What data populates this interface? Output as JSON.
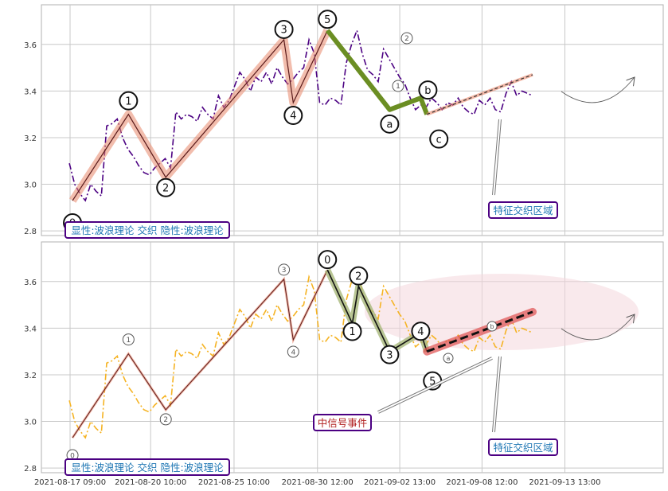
{
  "chart_data": {
    "type": "line",
    "x_tick_labels": [
      "2021-08-17 09:00",
      "2021-08-20 10:00",
      "2021-08-25 10:00",
      "2021-08-30 12:00",
      "2021-09-02 13:00",
      "2021-09-08 12:00",
      "2021-09-13 13:00"
    ],
    "ylim": [
      2.78,
      3.77
    ],
    "y_ticks": [
      2.8,
      3.0,
      3.2,
      3.4,
      3.6
    ],
    "y_tick_labels": [
      "2.8",
      "3.0",
      "3.2",
      "3.4",
      "3.6"
    ],
    "grid": true,
    "price_series": [
      3.09,
      3.0,
      2.96,
      2.93,
      3.0,
      2.97,
      2.95,
      3.25,
      3.26,
      3.28,
      3.2,
      3.15,
      3.12,
      3.08,
      3.05,
      3.04,
      3.07,
      3.09,
      3.11,
      3.07,
      3.31,
      3.28,
      3.3,
      3.29,
      3.27,
      3.33,
      3.3,
      3.28,
      3.38,
      3.33,
      3.36,
      3.42,
      3.48,
      3.45,
      3.4,
      3.46,
      3.44,
      3.48,
      3.43,
      3.5,
      3.46,
      3.43,
      3.45,
      3.48,
      3.5,
      3.62,
      3.56,
      3.35,
      3.34,
      3.37,
      3.36,
      3.34,
      3.52,
      3.6,
      3.66,
      3.56,
      3.49,
      3.47,
      3.44,
      3.58,
      3.54,
      3.5,
      3.46,
      3.43,
      3.37,
      3.32,
      3.34,
      3.33,
      3.37,
      3.35,
      3.32,
      3.35,
      3.34,
      3.37,
      3.33,
      3.31,
      3.3,
      3.36,
      3.34,
      3.37,
      3.32,
      3.31,
      3.39,
      3.44,
      3.38,
      3.4,
      3.39,
      3.38
    ],
    "panels": [
      {
        "name": "top",
        "price_color": "#4b0082",
        "main_wave": {
          "points": [
            [
              0.05,
              2.93
            ],
            [
              0.14,
              3.3
            ],
            [
              0.2,
              3.03
            ],
            [
              0.39,
              3.62
            ],
            [
              0.405,
              3.35
            ],
            [
              0.46,
              3.66
            ]
          ],
          "labels": [
            "0",
            "1",
            "2",
            "3",
            "4",
            "5"
          ]
        },
        "corrective_wave": {
          "points": [
            [
              0.46,
              3.66
            ],
            [
              0.56,
              3.32
            ],
            [
              0.61,
              3.37
            ],
            [
              0.62,
              3.3
            ]
          ],
          "labels": [
            "a",
            "b",
            "c"
          ]
        },
        "forecast": {
          "from": [
            0.62,
            3.3
          ],
          "to": [
            0.79,
            3.47
          ]
        },
        "subwave_labels": [
          "2",
          "1"
        ],
        "annotation_feature": "特征交织区域",
        "legend_text": "显性:波浪理论 交织 隐性:波浪理论"
      },
      {
        "name": "bottom",
        "price_color": "#f5b323",
        "main_wave": {
          "points": [
            [
              0.05,
              2.93
            ],
            [
              0.14,
              3.29
            ],
            [
              0.2,
              3.05
            ],
            [
              0.39,
              3.61
            ],
            [
              0.405,
              3.35
            ],
            [
              0.46,
              3.65
            ]
          ],
          "labels": [
            "0",
            "1",
            "2",
            "3",
            "4",
            "5"
          ]
        },
        "secondary_wave": {
          "points": [
            [
              0.46,
              3.65
            ],
            [
              0.5,
              3.42
            ],
            [
              0.51,
              3.58
            ],
            [
              0.56,
              3.3
            ],
            [
              0.61,
              3.38
            ],
            [
              0.62,
              3.3
            ]
          ],
          "labels": [
            "0",
            "1",
            "2",
            "3",
            "4",
            "5"
          ]
        },
        "forecast": {
          "from": [
            0.62,
            3.3
          ],
          "to": [
            0.79,
            3.47
          ]
        },
        "small_labels": [
          "a",
          "b"
        ],
        "annotation_mid": "中信号事件",
        "annotation_feature": "特征交织区域",
        "legend_text": "显性:波浪理论 交织 隐性:波浪理论"
      }
    ]
  },
  "colors": {
    "grid": "#c8c8c8",
    "frame": "#b0b0b0",
    "wave_highlight": "#e8866a",
    "green_wave": "#6b8e23",
    "green_soft": "#a7b87a",
    "forecast_red": "#e05050",
    "ellipse": "#f4d7dc",
    "legend_border": "#4b0082",
    "legend_text": "#1f77b4",
    "annotation_mid_text": "#b22222"
  }
}
